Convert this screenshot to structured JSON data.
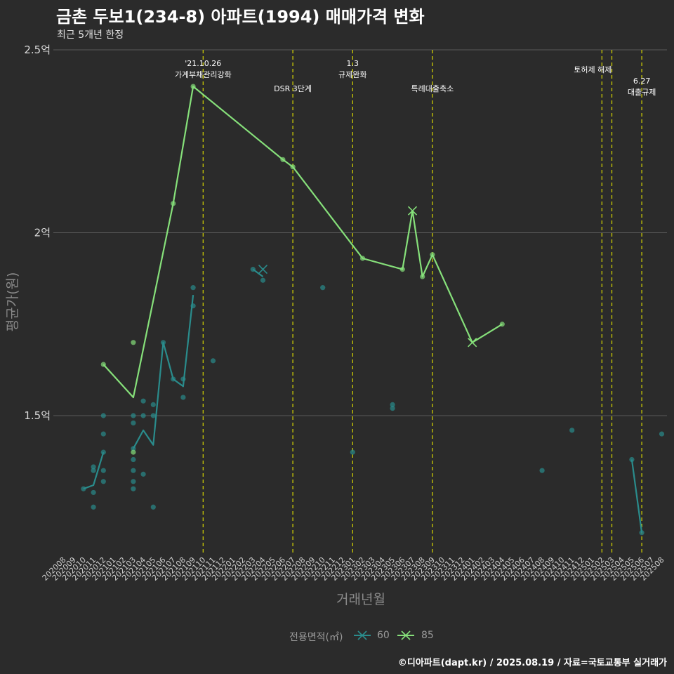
{
  "header": {
    "title": "금촌 두보1(234-8) 아파트(1994) 매매가격 변화",
    "subtitle": "최근 5개년 한정"
  },
  "legend": {
    "title": "전용면적(㎡)",
    "items": [
      {
        "label": "60",
        "color": "#2a8c8c"
      },
      {
        "label": "85",
        "color": "#86e07a"
      }
    ]
  },
  "caption": "©디아파트(dapt.kr) / 2025.08.19 / 자료=국토교통부 실거래가",
  "colors": {
    "background": "#2b2b2b",
    "grid": "#5a5a5a",
    "event_line": "#d8d800",
    "series_60": "#2a8c8c",
    "series_85": "#86e07a"
  },
  "chart_data": {
    "type": "line",
    "title": "금촌 두보1(234-8) 아파트(1994) 매매가격 변화",
    "subtitle": "최근 5개년 한정",
    "xlabel": "거래년월",
    "ylabel": "평균가(원)",
    "ylim": [
      1.12,
      2.5
    ],
    "yticks": [
      {
        "value": 1.5,
        "label": "1.5억"
      },
      {
        "value": 2.0,
        "label": "2억"
      },
      {
        "value": 2.5,
        "label": "2.5억"
      }
    ],
    "x_categories": [
      "202008",
      "202009",
      "202010",
      "202011",
      "202012",
      "202101",
      "202102",
      "202103",
      "202104",
      "202105",
      "202106",
      "202107",
      "202108",
      "202109",
      "202110",
      "202111",
      "202112",
      "202201",
      "202202",
      "202203",
      "202204",
      "202205",
      "202206",
      "202207",
      "202208",
      "202209",
      "202210",
      "202211",
      "202212",
      "202301",
      "202302",
      "202303",
      "202304",
      "202305",
      "202306",
      "202307",
      "202308",
      "202309",
      "202310",
      "202311",
      "202312",
      "202401",
      "202402",
      "202403",
      "202404",
      "202405",
      "202406",
      "202407",
      "202408",
      "202409",
      "202410",
      "202411",
      "202412",
      "202501",
      "202502",
      "202503",
      "202504",
      "202505",
      "202506",
      "202507",
      "202508"
    ],
    "events": [
      {
        "x": "202110",
        "lines": [
          "'21.10.26",
          "가계부채관리강화"
        ]
      },
      {
        "x": "202207",
        "lines": [
          "DSR 3단계"
        ]
      },
      {
        "x": "202301",
        "lines": [
          "1.3",
          "규제완화"
        ]
      },
      {
        "x": "202309",
        "lines": [
          "특례대출축소"
        ]
      },
      {
        "x": "202502",
        "lines": [
          "토허제 해제"
        ]
      },
      {
        "x": "202503",
        "lines": []
      },
      {
        "x": "202506",
        "lines": [
          "6.27",
          "대출규제"
        ]
      }
    ],
    "series": [
      {
        "name": "60",
        "line_segments": [
          [
            {
              "x": "202010",
              "y": 1.3
            },
            {
              "x": "202011",
              "y": 1.31
            },
            {
              "x": "202012",
              "y": 1.4
            },
            {
              "x": "202101",
              "y": null
            },
            {
              "x": "202103",
              "y": 1.41
            },
            {
              "x": "202104",
              "y": 1.46
            },
            {
              "x": "202105",
              "y": 1.42
            },
            {
              "x": "202106",
              "y": 1.7
            },
            {
              "x": "202107",
              "y": 1.6
            },
            {
              "x": "202108",
              "y": 1.58
            },
            {
              "x": "202109",
              "y": 1.83
            }
          ],
          [
            {
              "x": "202203",
              "y": 1.9
            },
            {
              "x": "202204",
              "y": 1.88
            }
          ],
          [
            {
              "x": "202505",
              "y": 1.38
            },
            {
              "x": "202506",
              "y": 1.18
            }
          ]
        ],
        "points": [
          {
            "x": "202010",
            "y": 1.3
          },
          {
            "x": "202011",
            "y": 1.36
          },
          {
            "x": "202011",
            "y": 1.35
          },
          {
            "x": "202011",
            "y": 1.29
          },
          {
            "x": "202011",
            "y": 1.25
          },
          {
            "x": "202012",
            "y": 1.5
          },
          {
            "x": "202012",
            "y": 1.45
          },
          {
            "x": "202012",
            "y": 1.4
          },
          {
            "x": "202012",
            "y": 1.35
          },
          {
            "x": "202012",
            "y": 1.32
          },
          {
            "x": "202103",
            "y": 1.5
          },
          {
            "x": "202103",
            "y": 1.48
          },
          {
            "x": "202103",
            "y": 1.41
          },
          {
            "x": "202103",
            "y": 1.38
          },
          {
            "x": "202103",
            "y": 1.35
          },
          {
            "x": "202103",
            "y": 1.32
          },
          {
            "x": "202103",
            "y": 1.3
          },
          {
            "x": "202104",
            "y": 1.54
          },
          {
            "x": "202104",
            "y": 1.5
          },
          {
            "x": "202104",
            "y": 1.34
          },
          {
            "x": "202105",
            "y": 1.53
          },
          {
            "x": "202105",
            "y": 1.5
          },
          {
            "x": "202105",
            "y": 1.25
          },
          {
            "x": "202106",
            "y": 1.7
          },
          {
            "x": "202107",
            "y": 1.6
          },
          {
            "x": "202108",
            "y": 1.6
          },
          {
            "x": "202108",
            "y": 1.55
          },
          {
            "x": "202109",
            "y": 1.85
          },
          {
            "x": "202109",
            "y": 1.8
          },
          {
            "x": "202111",
            "y": 1.65
          },
          {
            "x": "202203",
            "y": 1.9
          },
          {
            "x": "202204",
            "y": 1.9,
            "marker": "x"
          },
          {
            "x": "202204",
            "y": 1.87
          },
          {
            "x": "202210",
            "y": 1.85
          },
          {
            "x": "202301",
            "y": 1.4
          },
          {
            "x": "202305",
            "y": 1.53
          },
          {
            "x": "202305",
            "y": 1.52
          },
          {
            "x": "202408",
            "y": 1.35
          },
          {
            "x": "202411",
            "y": 1.46
          },
          {
            "x": "202505",
            "y": 1.38
          },
          {
            "x": "202506",
            "y": 1.18
          },
          {
            "x": "202508",
            "y": 1.45
          }
        ]
      },
      {
        "name": "85",
        "line_segments": [
          [
            {
              "x": "202012",
              "y": 1.64
            },
            {
              "x": "202103",
              "y": 1.55
            },
            {
              "x": "202107",
              "y": 2.08
            },
            {
              "x": "202109",
              "y": 2.4
            },
            {
              "x": "202206",
              "y": 2.2
            },
            {
              "x": "202207",
              "y": 2.18
            },
            {
              "x": "202302",
              "y": 1.93
            },
            {
              "x": "202306",
              "y": 1.9
            },
            {
              "x": "202307",
              "y": 2.06
            },
            {
              "x": "202308",
              "y": 1.88
            },
            {
              "x": "202309",
              "y": 1.94
            },
            {
              "x": "202401",
              "y": 1.7
            },
            {
              "x": "202404",
              "y": 1.75
            }
          ]
        ],
        "points": [
          {
            "x": "202012",
            "y": 1.64
          },
          {
            "x": "202103",
            "y": 1.7
          },
          {
            "x": "202103",
            "y": 1.4
          },
          {
            "x": "202107",
            "y": 2.08
          },
          {
            "x": "202109",
            "y": 2.4
          },
          {
            "x": "202206",
            "y": 2.2
          },
          {
            "x": "202207",
            "y": 2.18
          },
          {
            "x": "202302",
            "y": 1.93
          },
          {
            "x": "202306",
            "y": 1.9
          },
          {
            "x": "202307",
            "y": 2.06,
            "marker": "x"
          },
          {
            "x": "202308",
            "y": 1.88
          },
          {
            "x": "202309",
            "y": 1.94
          },
          {
            "x": "202401",
            "y": 1.7,
            "marker": "x"
          },
          {
            "x": "202404",
            "y": 1.75
          }
        ]
      }
    ]
  }
}
